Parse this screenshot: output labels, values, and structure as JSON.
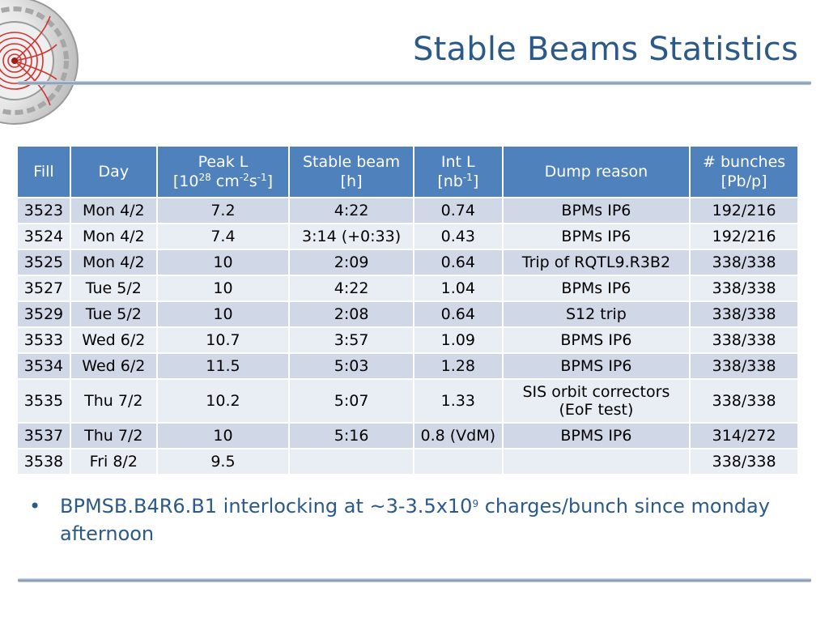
{
  "title": "Stable Beams Statistics",
  "table": {
    "headers": {
      "fill": "Fill",
      "day": "Day",
      "peak": {
        "line1": "Peak L",
        "unit_open": "[10",
        "exp1": "28",
        "unit_mid": " cm",
        "exp2": "-2",
        "unit_mid2": "s",
        "exp3": "-1",
        "unit_close": "]"
      },
      "stable": {
        "line1": "Stable beam",
        "line2": "[h]"
      },
      "intl": {
        "line1": "Int L",
        "unit_open": "[nb",
        "exp": "-1",
        "unit_close": "]"
      },
      "dump": "Dump reason",
      "bunches": {
        "line1": "# bunches",
        "line2": "[Pb/p]"
      }
    },
    "rows": [
      {
        "fill": "3523",
        "day": "Mon 4/2",
        "peak": "7.2",
        "stable": "4:22",
        "intl": "0.74",
        "dump": "BPMs IP6",
        "dump2": "",
        "bunches": "192/216"
      },
      {
        "fill": "3524",
        "day": "Mon 4/2",
        "peak": "7.4",
        "stable": "3:14 (+0:33)",
        "intl": "0.43",
        "dump": "BPMs IP6",
        "dump2": "",
        "bunches": "192/216"
      },
      {
        "fill": "3525",
        "day": "Mon 4/2",
        "peak": "10",
        "stable": "2:09",
        "intl": "0.64",
        "dump": "Trip of RQTL9.R3B2",
        "dump2": "",
        "bunches": "338/338"
      },
      {
        "fill": "3527",
        "day": "Tue 5/2",
        "peak": "10",
        "stable": "4:22",
        "intl": "1.04",
        "dump": "BPMs IP6",
        "dump2": "",
        "bunches": "338/338"
      },
      {
        "fill": "3529",
        "day": "Tue 5/2",
        "peak": "10",
        "stable": "2:08",
        "intl": "0.64",
        "dump": "S12 trip",
        "dump2": "",
        "bunches": "338/338"
      },
      {
        "fill": "3533",
        "day": "Wed 6/2",
        "peak": "10.7",
        "stable": "3:57",
        "intl": "1.09",
        "dump": "BPMS IP6",
        "dump2": "",
        "bunches": "338/338"
      },
      {
        "fill": "3534",
        "day": "Wed 6/2",
        "peak": "11.5",
        "stable": "5:03",
        "intl": "1.28",
        "dump": "BPMS IP6",
        "dump2": "",
        "bunches": "338/338"
      },
      {
        "fill": "3535",
        "day": "Thu 7/2",
        "peak": "10.2",
        "stable": "5:07",
        "intl": "1.33",
        "dump": "SIS orbit correctors",
        "dump2": "(EoF test)",
        "bunches": "338/338"
      },
      {
        "fill": "3537",
        "day": "Thu 7/2",
        "peak": "10",
        "stable": "5:16",
        "intl": "0.8 (VdM)",
        "dump": "BPMS IP6",
        "dump2": "",
        "bunches": "314/272"
      },
      {
        "fill": "3538",
        "day": "Fri 8/2",
        "peak": "9.5",
        "stable": "",
        "intl": "",
        "dump": "",
        "dump2": "",
        "bunches": "338/338"
      }
    ]
  },
  "bullet": {
    "marker": "•",
    "text_before": "BPMSB.B4R6.B1 interlocking at ~3-3.5x10",
    "exponent": "9",
    "text_after": " charges/bunch since monday afternoon"
  },
  "colors": {
    "title": "#2b5a8a",
    "header_bg": "#4f81bd",
    "row_odd": "#d0d8e8",
    "row_even": "#e9edf4"
  },
  "logo": {
    "icon": "lhc-detector-logo-icon"
  }
}
